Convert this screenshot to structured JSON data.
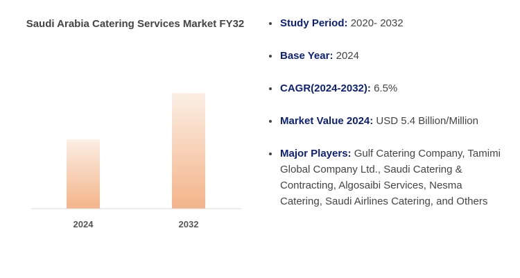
{
  "chart_data": {
    "type": "bar",
    "title": "Saudi Arabia Catering Services Market FY32",
    "categories": [
      "2024",
      "2032"
    ],
    "values": [
      5.4,
      9.0
    ],
    "ylim": [
      0,
      10
    ],
    "grid": false,
    "bar_color_top": "#fbeee4",
    "bar_color_bottom": "#f4b48a"
  },
  "facts": [
    {
      "label": "Study Period:",
      "value": "2020- 2032"
    },
    {
      "label": "Base Year:",
      "value": "2024"
    },
    {
      "label": "CAGR(2024-2032):",
      "value": "6.5%"
    },
    {
      "label": "Market Value 2024:",
      "value": "USD 5.4 Billion/Million"
    },
    {
      "label": "Major Players:",
      "value": "Gulf Catering Company, Tamimi Global Company Ltd., Saudi Catering & Contracting, Algosaibi Services, Nesma Catering, Saudi Airlines Catering, and Others"
    }
  ],
  "colors": {
    "label": "#0b1f7a",
    "text": "#444444",
    "axis": "#d9d9d9"
  }
}
